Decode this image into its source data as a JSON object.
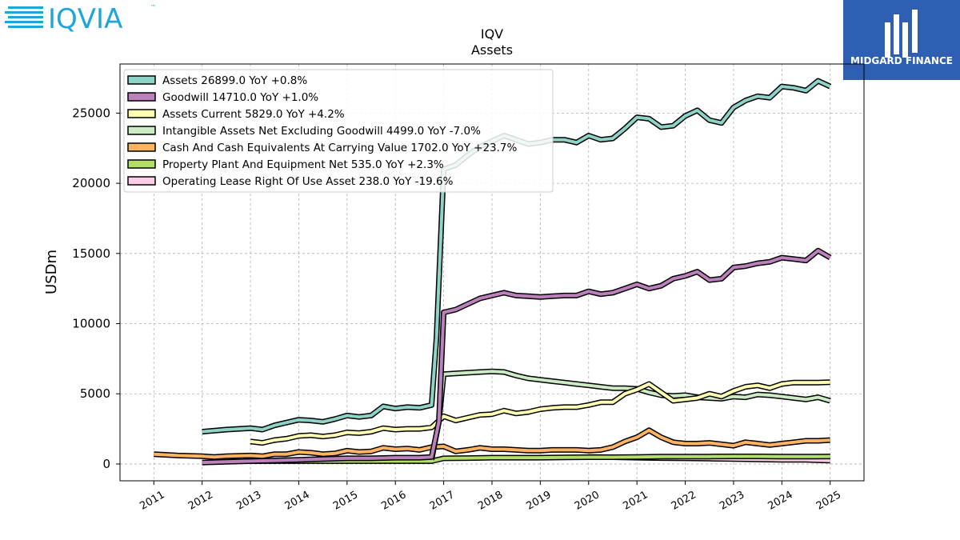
{
  "branding": {
    "left_logo_text": "IQVIA",
    "left_logo_tm": "™",
    "right_logo_text": "MIDGARD FINANCE",
    "left_logo_color": "#1fa6d8",
    "right_logo_bg": "#2f5fb3"
  },
  "chart_data": {
    "type": "line",
    "title": "IQV",
    "subtitle": "Assets",
    "xlabel": "",
    "ylabel": "USDm",
    "xlim": [
      2010.3,
      2025.7
    ],
    "ylim": [
      -1200,
      28500
    ],
    "yticks": [
      0,
      5000,
      10000,
      15000,
      20000,
      25000
    ],
    "xticks": [
      "2011",
      "2012",
      "2013",
      "2014",
      "2015",
      "2016",
      "2017",
      "2018",
      "2019",
      "2020",
      "2021",
      "2022",
      "2023",
      "2024",
      "2025"
    ],
    "grid": true,
    "legend_position": "top-left",
    "series": [
      {
        "name": "Assets",
        "legend": "Assets  26899.0 YoY +0.8%",
        "color": "#8dd3c7",
        "points": [
          [
            2012.0,
            2300
          ],
          [
            2012.5,
            2450
          ],
          [
            2013.0,
            2550
          ],
          [
            2013.25,
            2450
          ],
          [
            2013.5,
            2750
          ],
          [
            2013.75,
            2950
          ],
          [
            2014.0,
            3150
          ],
          [
            2014.25,
            3100
          ],
          [
            2014.5,
            3000
          ],
          [
            2014.75,
            3200
          ],
          [
            2015.0,
            3450
          ],
          [
            2015.25,
            3350
          ],
          [
            2015.5,
            3450
          ],
          [
            2015.75,
            4100
          ],
          [
            2016.0,
            3950
          ],
          [
            2016.25,
            4050
          ],
          [
            2016.5,
            4000
          ],
          [
            2016.75,
            4200
          ],
          [
            2016.85,
            9000
          ],
          [
            2017.0,
            21000
          ],
          [
            2017.25,
            21300
          ],
          [
            2017.5,
            22000
          ],
          [
            2017.75,
            22600
          ],
          [
            2018.0,
            23000
          ],
          [
            2018.25,
            23400
          ],
          [
            2018.5,
            23100
          ],
          [
            2018.75,
            22800
          ],
          [
            2019.0,
            22900
          ],
          [
            2019.25,
            23100
          ],
          [
            2019.5,
            23100
          ],
          [
            2019.75,
            22900
          ],
          [
            2020.0,
            23400
          ],
          [
            2020.25,
            23100
          ],
          [
            2020.5,
            23200
          ],
          [
            2020.75,
            23900
          ],
          [
            2021.0,
            24700
          ],
          [
            2021.25,
            24600
          ],
          [
            2021.5,
            24000
          ],
          [
            2021.75,
            24100
          ],
          [
            2022.0,
            24800
          ],
          [
            2022.25,
            25200
          ],
          [
            2022.5,
            24500
          ],
          [
            2022.75,
            24300
          ],
          [
            2023.0,
            25400
          ],
          [
            2023.25,
            25900
          ],
          [
            2023.5,
            26200
          ],
          [
            2023.75,
            26100
          ],
          [
            2024.0,
            26900
          ],
          [
            2024.25,
            26800
          ],
          [
            2024.5,
            26600
          ],
          [
            2024.75,
            27300
          ],
          [
            2025.0,
            26899
          ]
        ]
      },
      {
        "name": "Goodwill",
        "legend": "Goodwill  14710.0 YoY +1.0%",
        "color": "#bc80bd",
        "points": [
          [
            2012.0,
            100
          ],
          [
            2012.5,
            150
          ],
          [
            2013.0,
            200
          ],
          [
            2013.5,
            250
          ],
          [
            2014.0,
            300
          ],
          [
            2014.5,
            350
          ],
          [
            2015.0,
            400
          ],
          [
            2015.5,
            400
          ],
          [
            2016.0,
            450
          ],
          [
            2016.5,
            450
          ],
          [
            2016.75,
            500
          ],
          [
            2016.9,
            3000
          ],
          [
            2017.0,
            10800
          ],
          [
            2017.25,
            11000
          ],
          [
            2017.5,
            11400
          ],
          [
            2017.75,
            11800
          ],
          [
            2018.0,
            12000
          ],
          [
            2018.25,
            12200
          ],
          [
            2018.5,
            12000
          ],
          [
            2018.75,
            11950
          ],
          [
            2019.0,
            11900
          ],
          [
            2019.25,
            11950
          ],
          [
            2019.5,
            12000
          ],
          [
            2019.75,
            12000
          ],
          [
            2020.0,
            12300
          ],
          [
            2020.25,
            12100
          ],
          [
            2020.5,
            12200
          ],
          [
            2020.75,
            12500
          ],
          [
            2021.0,
            12800
          ],
          [
            2021.25,
            12500
          ],
          [
            2021.5,
            12700
          ],
          [
            2021.75,
            13200
          ],
          [
            2022.0,
            13400
          ],
          [
            2022.25,
            13700
          ],
          [
            2022.5,
            13100
          ],
          [
            2022.75,
            13200
          ],
          [
            2023.0,
            14000
          ],
          [
            2023.25,
            14100
          ],
          [
            2023.5,
            14300
          ],
          [
            2023.75,
            14400
          ],
          [
            2024.0,
            14700
          ],
          [
            2024.25,
            14600
          ],
          [
            2024.5,
            14500
          ],
          [
            2024.75,
            15200
          ],
          [
            2025.0,
            14710
          ]
        ]
      },
      {
        "name": "Assets Current",
        "legend": "Assets Current  5829.0 YoY +4.2%",
        "color": "#ffffb3",
        "points": [
          [
            2013.0,
            1600
          ],
          [
            2013.25,
            1500
          ],
          [
            2013.5,
            1700
          ],
          [
            2013.75,
            1800
          ],
          [
            2014.0,
            2000
          ],
          [
            2014.25,
            2050
          ],
          [
            2014.5,
            1950
          ],
          [
            2014.75,
            2050
          ],
          [
            2015.0,
            2250
          ],
          [
            2015.25,
            2200
          ],
          [
            2015.5,
            2300
          ],
          [
            2015.75,
            2550
          ],
          [
            2016.0,
            2450
          ],
          [
            2016.25,
            2500
          ],
          [
            2016.5,
            2500
          ],
          [
            2016.75,
            2600
          ],
          [
            2017.0,
            3400
          ],
          [
            2017.25,
            3100
          ],
          [
            2017.5,
            3300
          ],
          [
            2017.75,
            3500
          ],
          [
            2018.0,
            3550
          ],
          [
            2018.25,
            3800
          ],
          [
            2018.5,
            3600
          ],
          [
            2018.75,
            3700
          ],
          [
            2019.0,
            3900
          ],
          [
            2019.25,
            4000
          ],
          [
            2019.5,
            4050
          ],
          [
            2019.75,
            4050
          ],
          [
            2020.0,
            4200
          ],
          [
            2020.25,
            4400
          ],
          [
            2020.5,
            4400
          ],
          [
            2020.75,
            5000
          ],
          [
            2021.0,
            5300
          ],
          [
            2021.25,
            5700
          ],
          [
            2021.5,
            5100
          ],
          [
            2021.75,
            4500
          ],
          [
            2022.0,
            4600
          ],
          [
            2022.25,
            4700
          ],
          [
            2022.5,
            5000
          ],
          [
            2022.75,
            4800
          ],
          [
            2023.0,
            5200
          ],
          [
            2023.25,
            5500
          ],
          [
            2023.5,
            5600
          ],
          [
            2023.75,
            5400
          ],
          [
            2024.0,
            5700
          ],
          [
            2024.25,
            5800
          ],
          [
            2024.5,
            5800
          ],
          [
            2024.75,
            5800
          ],
          [
            2025.0,
            5829
          ]
        ]
      },
      {
        "name": "Intangible Assets Net Excluding Goodwill",
        "legend": "Intangible Assets Net Excluding Goodwill  4499.0 YoY -7.0%",
        "color": "#ccebc5",
        "points": [
          [
            2016.75,
            300
          ],
          [
            2016.9,
            3000
          ],
          [
            2017.0,
            6400
          ],
          [
            2017.25,
            6450
          ],
          [
            2017.5,
            6500
          ],
          [
            2017.75,
            6550
          ],
          [
            2018.0,
            6600
          ],
          [
            2018.25,
            6550
          ],
          [
            2018.5,
            6300
          ],
          [
            2018.75,
            6100
          ],
          [
            2019.0,
            6000
          ],
          [
            2019.25,
            5900
          ],
          [
            2019.5,
            5800
          ],
          [
            2019.75,
            5700
          ],
          [
            2020.0,
            5600
          ],
          [
            2020.25,
            5500
          ],
          [
            2020.5,
            5400
          ],
          [
            2020.75,
            5400
          ],
          [
            2021.0,
            5350
          ],
          [
            2021.25,
            5100
          ],
          [
            2021.5,
            4900
          ],
          [
            2021.75,
            4850
          ],
          [
            2022.0,
            4900
          ],
          [
            2022.25,
            4750
          ],
          [
            2022.5,
            4700
          ],
          [
            2022.75,
            4650
          ],
          [
            2023.0,
            4800
          ],
          [
            2023.25,
            4750
          ],
          [
            2023.5,
            4950
          ],
          [
            2023.75,
            4900
          ],
          [
            2024.0,
            4800
          ],
          [
            2024.25,
            4700
          ],
          [
            2024.5,
            4600
          ],
          [
            2024.75,
            4750
          ],
          [
            2025.0,
            4499
          ]
        ]
      },
      {
        "name": "Cash And Cash Equivalents At Carrying Value",
        "legend": "Cash And Cash Equivalents At Carrying Value  1702.0 YoY +23.7%",
        "color": "#fdb462",
        "points": [
          [
            2011.0,
            700
          ],
          [
            2011.5,
            600
          ],
          [
            2012.0,
            550
          ],
          [
            2012.25,
            500
          ],
          [
            2012.5,
            550
          ],
          [
            2013.0,
            600
          ],
          [
            2013.25,
            550
          ],
          [
            2013.5,
            700
          ],
          [
            2013.75,
            700
          ],
          [
            2014.0,
            850
          ],
          [
            2014.25,
            800
          ],
          [
            2014.5,
            700
          ],
          [
            2014.75,
            750
          ],
          [
            2015.0,
            950
          ],
          [
            2015.25,
            850
          ],
          [
            2015.5,
            900
          ],
          [
            2015.75,
            1150
          ],
          [
            2016.0,
            1050
          ],
          [
            2016.25,
            1100
          ],
          [
            2016.5,
            1000
          ],
          [
            2016.75,
            1200
          ],
          [
            2017.0,
            1250
          ],
          [
            2017.25,
            900
          ],
          [
            2017.5,
            1000
          ],
          [
            2017.75,
            1150
          ],
          [
            2018.0,
            1050
          ],
          [
            2018.25,
            1050
          ],
          [
            2018.5,
            1000
          ],
          [
            2018.75,
            950
          ],
          [
            2019.0,
            950
          ],
          [
            2019.25,
            1000
          ],
          [
            2019.5,
            1000
          ],
          [
            2019.75,
            1000
          ],
          [
            2020.0,
            950
          ],
          [
            2020.25,
            1000
          ],
          [
            2020.5,
            1200
          ],
          [
            2020.75,
            1600
          ],
          [
            2021.0,
            1900
          ],
          [
            2021.25,
            2400
          ],
          [
            2021.5,
            1900
          ],
          [
            2021.75,
            1550
          ],
          [
            2022.0,
            1450
          ],
          [
            2022.25,
            1450
          ],
          [
            2022.5,
            1500
          ],
          [
            2022.75,
            1400
          ],
          [
            2023.0,
            1300
          ],
          [
            2023.25,
            1550
          ],
          [
            2023.5,
            1450
          ],
          [
            2023.75,
            1350
          ],
          [
            2024.0,
            1450
          ],
          [
            2024.25,
            1550
          ],
          [
            2024.5,
            1650
          ],
          [
            2024.75,
            1650
          ],
          [
            2025.0,
            1702
          ]
        ]
      },
      {
        "name": "Property Plant And Equipment Net",
        "legend": "Property Plant And Equipment Net  535.0 YoY +2.3%",
        "color": "#b3de69",
        "points": [
          [
            2013.0,
            200
          ],
          [
            2014.0,
            200
          ],
          [
            2015.0,
            200
          ],
          [
            2016.0,
            200
          ],
          [
            2016.75,
            200
          ],
          [
            2017.0,
            400
          ],
          [
            2017.5,
            420
          ],
          [
            2018.0,
            450
          ],
          [
            2018.5,
            450
          ],
          [
            2019.0,
            450
          ],
          [
            2019.5,
            470
          ],
          [
            2020.0,
            480
          ],
          [
            2020.5,
            480
          ],
          [
            2021.0,
            500
          ],
          [
            2021.5,
            520
          ],
          [
            2022.0,
            520
          ],
          [
            2022.5,
            530
          ],
          [
            2023.0,
            540
          ],
          [
            2023.5,
            540
          ],
          [
            2024.0,
            530
          ],
          [
            2024.5,
            523
          ],
          [
            2025.0,
            535
          ]
        ]
      },
      {
        "name": "Operating Lease Right Of Use Asset",
        "legend": "Operating Lease Right Of Use Asset  238.0 YoY -19.6%",
        "color": "#fccde5",
        "points": [
          [
            2020.0,
            500
          ],
          [
            2020.5,
            480
          ],
          [
            2021.0,
            450
          ],
          [
            2021.5,
            420
          ],
          [
            2022.0,
            400
          ],
          [
            2022.5,
            380
          ],
          [
            2023.0,
            350
          ],
          [
            2023.5,
            320
          ],
          [
            2024.0,
            300
          ],
          [
            2024.5,
            296
          ],
          [
            2025.0,
            238
          ]
        ]
      }
    ]
  }
}
